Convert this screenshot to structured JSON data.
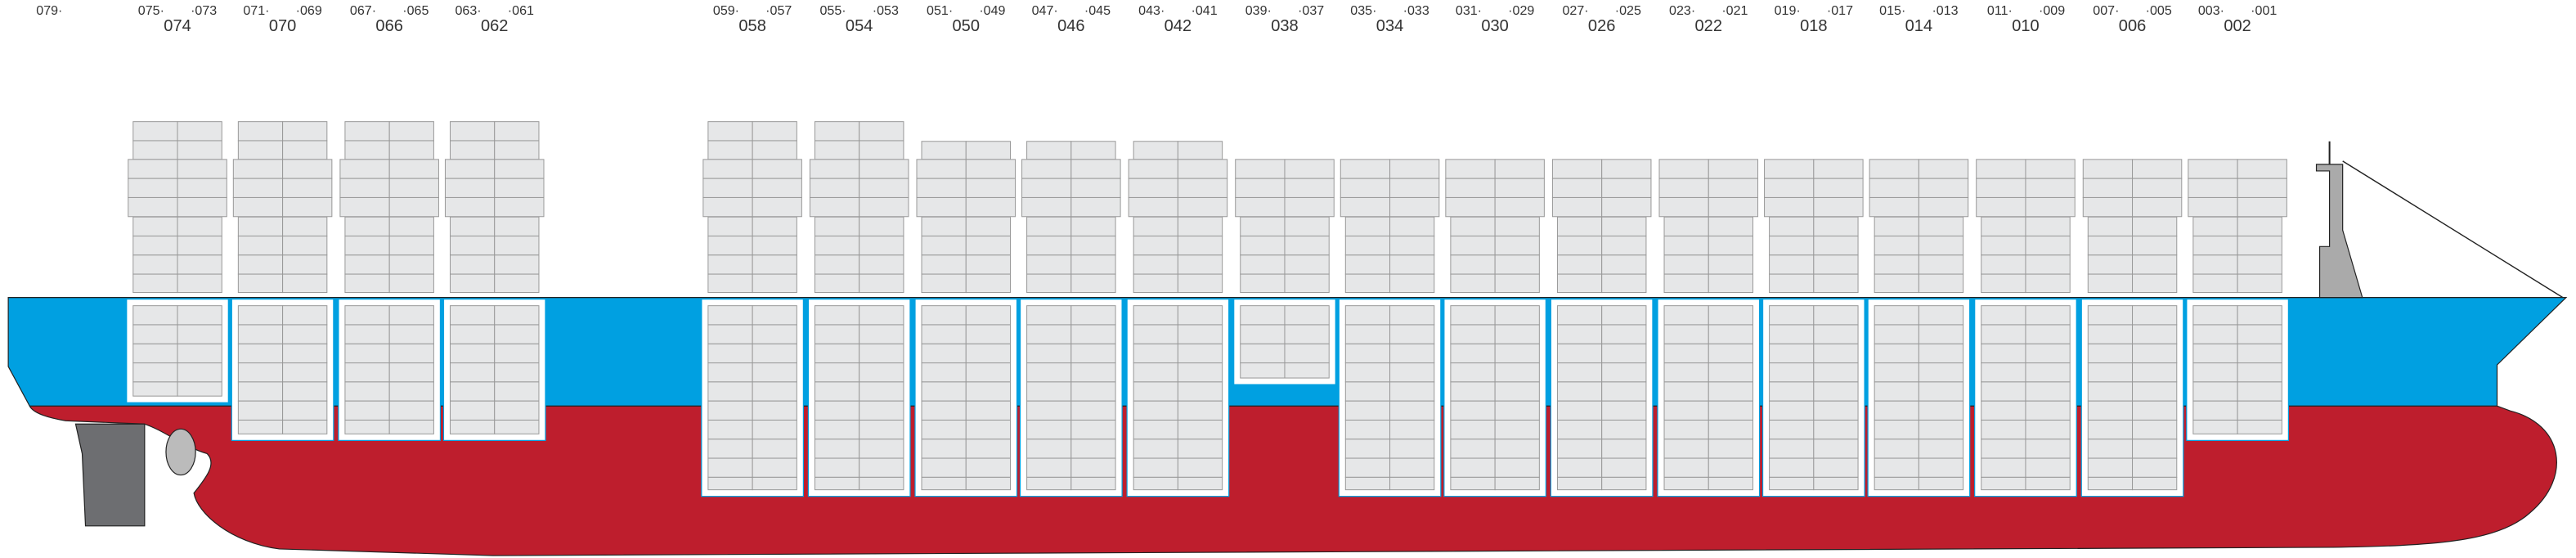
{
  "stern_label": "079·",
  "bays": [
    {
      "left": "075·",
      "right": "·073",
      "number": "074"
    },
    {
      "left": "071·",
      "right": "·069",
      "number": "070"
    },
    {
      "left": "067·",
      "right": "·065",
      "number": "066"
    },
    {
      "left": "063·",
      "right": "·061",
      "number": "062"
    },
    {
      "left": "059·",
      "right": "·057",
      "number": "058"
    },
    {
      "left": "055·",
      "right": "·053",
      "number": "054"
    },
    {
      "left": "051·",
      "right": "·049",
      "number": "050"
    },
    {
      "left": "047·",
      "right": "·045",
      "number": "046"
    },
    {
      "left": "043·",
      "right": "·041",
      "number": "042"
    },
    {
      "left": "039·",
      "right": "·037",
      "number": "038"
    },
    {
      "left": "035·",
      "right": "·033",
      "number": "034"
    },
    {
      "left": "031·",
      "right": "·029",
      "number": "030"
    },
    {
      "left": "027·",
      "right": "·025",
      "number": "026"
    },
    {
      "left": "023·",
      "right": "·021",
      "number": "022"
    },
    {
      "left": "019·",
      "right": "·017",
      "number": "018"
    },
    {
      "left": "015·",
      "right": "·013",
      "number": "014"
    },
    {
      "left": "011·",
      "right": "·009",
      "number": "010"
    },
    {
      "left": "007·",
      "right": "·005",
      "number": "006"
    },
    {
      "left": "003·",
      "right": "·001",
      "number": "002"
    }
  ]
}
